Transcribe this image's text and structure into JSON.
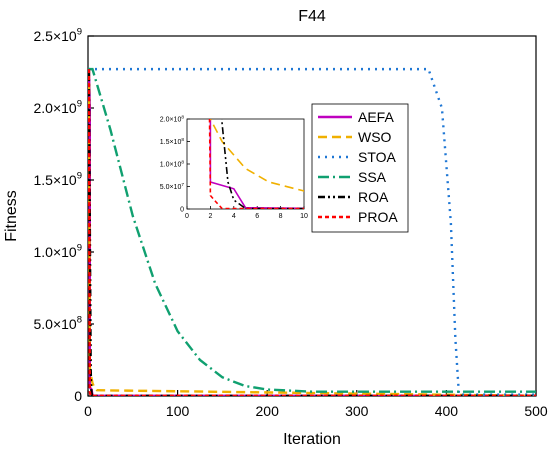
{
  "chart_data": {
    "type": "line",
    "title": "F44",
    "xlabel": "Iteration",
    "ylabel": "Fitness",
    "xlim": [
      0,
      500
    ],
    "ylim": [
      0,
      2500000000
    ],
    "x_ticks": [
      "0",
      "100",
      "200",
      "300",
      "400",
      "500"
    ],
    "y_ticks": [
      {
        "mantissa": "0",
        "exp": ""
      },
      {
        "mantissa": "5.0×10",
        "exp": "8"
      },
      {
        "mantissa": "1.0×10",
        "exp": "9"
      },
      {
        "mantissa": "1.5×10",
        "exp": "9"
      },
      {
        "mantissa": "2.0×10",
        "exp": "9"
      },
      {
        "mantissa": "2.5×10",
        "exp": "9"
      }
    ],
    "grid": false,
    "legend_position": "top-right",
    "series": [
      {
        "name": "AEFA",
        "color": "#bf00bf",
        "dash": "solid",
        "x": [
          1,
          2,
          2,
          4,
          5,
          10,
          500
        ],
        "y": [
          2270000000,
          2000000000,
          60000000,
          45000000,
          3000000,
          1500000,
          1000000
        ]
      },
      {
        "name": "WSO",
        "color": "#f0b000",
        "dash": "dash",
        "x": [
          1,
          2,
          3,
          5,
          7,
          10,
          500
        ],
        "y": [
          2270000000,
          200000000,
          150000000,
          90000000,
          60000000,
          40000000,
          1000000
        ]
      },
      {
        "name": "STOA",
        "color": "#1f77d4",
        "dash": "dot",
        "x": [
          0,
          380,
          395,
          405,
          410,
          414,
          500
        ],
        "y": [
          2270000000,
          2270000000,
          2000000000,
          1200000000,
          400000000,
          10000000,
          10000000
        ]
      },
      {
        "name": "SSA",
        "color": "#10a070",
        "dash": "dashdot",
        "x": [
          0,
          5,
          25,
          50,
          75,
          100,
          125,
          150,
          175,
          200,
          250,
          500
        ],
        "y": [
          2270000000,
          2270000000,
          1850000000,
          1250000000,
          780000000,
          450000000,
          250000000,
          130000000,
          70000000,
          45000000,
          30000000,
          30000000
        ]
      },
      {
        "name": "ROA",
        "color": "#000000",
        "dash": "dashdotdot",
        "x": [
          1,
          3,
          3.5,
          4,
          5,
          500
        ],
        "y": [
          2270000000,
          190000000,
          60000000,
          20000000,
          1000000,
          1000000
        ]
      },
      {
        "name": "PROA",
        "color": "#ff0000",
        "dash": "dense-dash",
        "x": [
          1,
          2,
          2.5,
          3,
          500
        ],
        "y": [
          2270000000,
          30000000,
          15000000,
          1000000,
          1000000
        ]
      }
    ],
    "inset": {
      "xlim": [
        0,
        10
      ],
      "ylim": [
        0,
        200000000
      ],
      "x_ticks": [
        "0",
        "2",
        "4",
        "6",
        "8",
        "10"
      ],
      "y_ticks": [
        {
          "mantissa": "0",
          "exp": ""
        },
        {
          "mantissa": "5.0×10",
          "exp": "7"
        },
        {
          "mantissa": "1.0×10",
          "exp": "8"
        },
        {
          "mantissa": "1.5×10",
          "exp": "8"
        },
        {
          "mantissa": "2.0×10",
          "exp": "8"
        }
      ]
    }
  }
}
